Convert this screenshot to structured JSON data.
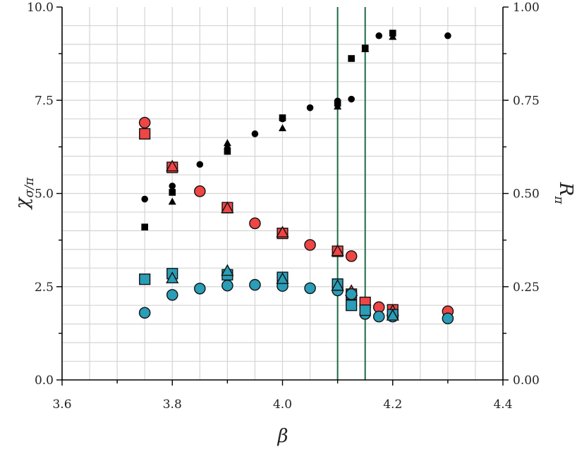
{
  "chart_data": {
    "type": "scatter",
    "title": "",
    "xlabel": "β",
    "ylabel_left": "χ",
    "ylabel_left_subscript": "σ/π",
    "ylabel_right": "R",
    "ylabel_right_subscript": "π",
    "xlim": [
      3.6,
      4.4
    ],
    "ylim_left": [
      0,
      10
    ],
    "ylim_right": [
      0,
      1
    ],
    "x_ticks": [
      3.6,
      3.8,
      4.0,
      4.2,
      4.4
    ],
    "x_tick_labels": [
      "3.6",
      "3.8",
      "4.0",
      "4.2",
      "4.4"
    ],
    "y_left_ticks": [
      0,
      2.5,
      5.0,
      7.5,
      10.0
    ],
    "y_left_tick_labels": [
      "0.0",
      "2.5",
      "5.0",
      "7.5",
      "10.0"
    ],
    "y_right_ticks": [
      0,
      0.25,
      0.5,
      0.75,
      1.0
    ],
    "y_right_tick_labels": [
      "0.00",
      "0.25",
      "0.50",
      "0.75",
      "1.00"
    ],
    "grid": true,
    "vertical_lines": [
      4.1,
      4.15
    ],
    "colors": {
      "red": "#ee4545",
      "teal": "#2a9db7",
      "black": "#000000",
      "vline": "#1e6b45",
      "grid": "#d4d4d4"
    },
    "series": [
      {
        "name": "black circles",
        "axis": "right",
        "marker": "circle",
        "color": "#000000",
        "x": [
          3.75,
          3.8,
          3.85,
          3.9,
          3.95,
          4.0,
          4.05,
          4.1,
          4.125,
          4.175,
          4.3
        ],
        "y": [
          0.485,
          0.52,
          0.578,
          0.62,
          0.66,
          0.7,
          0.73,
          0.748,
          0.753,
          0.923,
          0.923
        ]
      },
      {
        "name": "black squares",
        "axis": "right",
        "marker": "square",
        "color": "#000000",
        "x": [
          3.75,
          3.8,
          3.9,
          4.0,
          4.1,
          4.125,
          4.15,
          4.2
        ],
        "y": [
          0.41,
          0.503,
          0.613,
          0.703,
          0.742,
          0.862,
          0.89,
          0.93
        ]
      },
      {
        "name": "black triangles",
        "axis": "right",
        "marker": "triangle",
        "color": "#000000",
        "x": [
          3.8,
          3.9,
          4.0,
          4.1,
          4.15,
          4.2
        ],
        "y": [
          0.478,
          0.635,
          0.675,
          0.733,
          0.887,
          0.92
        ]
      },
      {
        "name": "red circles",
        "axis": "left",
        "marker": "circle",
        "color": "#ee4545",
        "x": [
          3.75,
          3.85,
          3.95,
          4.05,
          4.125,
          4.175,
          4.3
        ],
        "y": [
          6.9,
          5.06,
          4.2,
          3.62,
          3.32,
          1.95,
          1.84
        ]
      },
      {
        "name": "red squares",
        "axis": "left",
        "marker": "square",
        "color": "#ee4545",
        "x": [
          3.75,
          3.8,
          3.9,
          4.0,
          4.1,
          4.125,
          4.15,
          4.2
        ],
        "y": [
          6.6,
          5.7,
          4.62,
          3.93,
          3.45,
          2.3,
          2.08,
          1.88
        ]
      },
      {
        "name": "red triangles",
        "axis": "left",
        "marker": "triangle",
        "color": "#ee4545",
        "x": [
          3.8,
          3.9,
          4.0,
          4.1,
          4.125,
          4.2
        ],
        "y": [
          5.72,
          4.6,
          3.95,
          3.45,
          2.38,
          1.85
        ]
      },
      {
        "name": "teal circles",
        "axis": "left",
        "marker": "circle",
        "color": "#2a9db7",
        "x": [
          3.75,
          3.8,
          3.85,
          3.9,
          3.95,
          4.0,
          4.05,
          4.1,
          4.125,
          4.15,
          4.175,
          4.2,
          4.3
        ],
        "y": [
          1.8,
          2.28,
          2.45,
          2.53,
          2.55,
          2.52,
          2.46,
          2.4,
          2.3,
          1.77,
          1.7,
          1.7,
          1.65
        ]
      },
      {
        "name": "teal squares",
        "axis": "left",
        "marker": "square",
        "color": "#2a9db7",
        "x": [
          3.75,
          3.8,
          3.9,
          4.0,
          4.1,
          4.125,
          4.15,
          4.2
        ],
        "y": [
          2.7,
          2.85,
          2.82,
          2.75,
          2.57,
          2.0,
          1.87,
          1.75
        ]
      },
      {
        "name": "teal triangles",
        "axis": "left",
        "marker": "triangle",
        "color": "#2a9db7",
        "x": [
          3.8,
          3.9,
          4.0,
          4.1,
          4.2
        ],
        "y": [
          2.72,
          2.92,
          2.7,
          2.52,
          1.72
        ]
      }
    ]
  }
}
